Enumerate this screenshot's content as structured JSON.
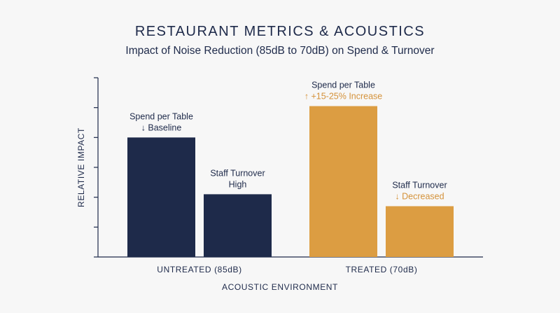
{
  "chart_data": {
    "type": "bar",
    "title": "RESTAURANT METRICS & ACOUSTICS",
    "subtitle": "Impact of Noise Reduction (85dB to 70dB) on Spend & Turnover",
    "xlabel": "ACOUSTIC ENVIRONMENT",
    "ylabel": "RELATIVE IMPACT",
    "ylim": [
      0,
      6
    ],
    "y_tick_labels_shown": false,
    "grid": false,
    "groups": [
      {
        "category": "UNTREATED (85dB)",
        "color": "#1e2a4a",
        "bars": [
          {
            "name": "Spend per Table",
            "value": 4,
            "annotation": "↓ Baseline",
            "annotation_color": "#1e2a4a"
          },
          {
            "name": "Staff Turnover",
            "value": 2.1,
            "annotation": "High",
            "annotation_color": "#1e2a4a"
          }
        ]
      },
      {
        "category": "TREATED (70dB)",
        "color": "#dc9d42",
        "bars": [
          {
            "name": "Spend per Table",
            "value": 5.05,
            "annotation": "↑ +15-25% Increase",
            "annotation_color": "#d4923a"
          },
          {
            "name": "Staff Turnover",
            "value": 1.7,
            "annotation": "↓ Decreased",
            "annotation_color": "#d4923a"
          }
        ]
      }
    ]
  }
}
